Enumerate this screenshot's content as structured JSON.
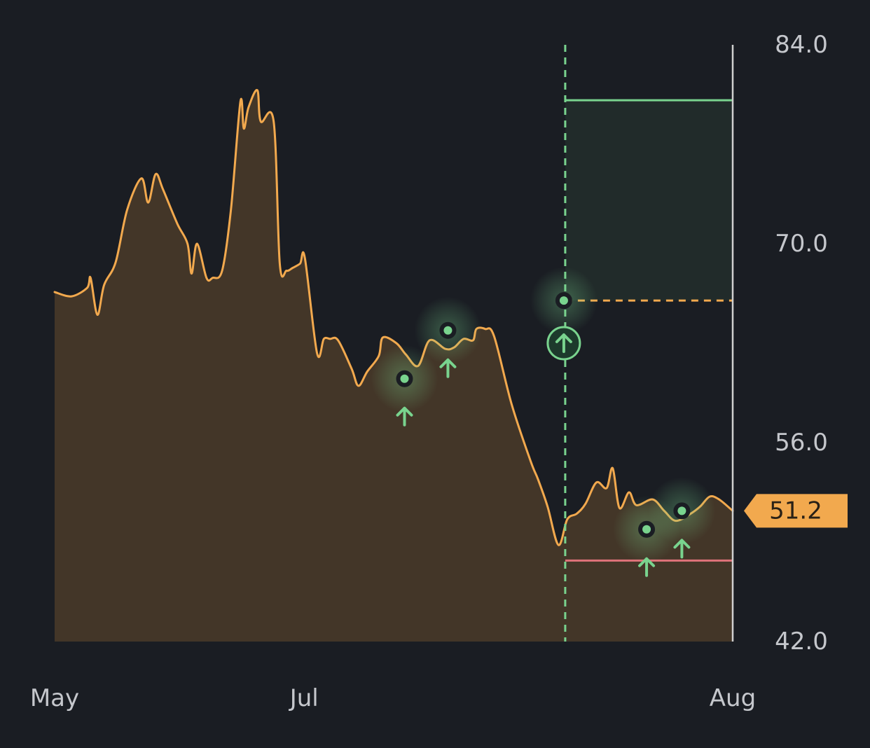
{
  "colors": {
    "background": "#1a1d23",
    "line": "#f2a94e",
    "area_fill": "#433628",
    "signal_green": "#79d38e",
    "stop_red": "#e0737a",
    "target_zone": "#212b2a",
    "axis_line": "#d0d0d0",
    "label_bg": "#f2a94e"
  },
  "icons": {
    "buy_signal": "arrow-up-icon",
    "entry_marker": "arrow-up-circle-icon",
    "price_pointer": "price-flag"
  },
  "chart_data": {
    "type": "area",
    "title": "",
    "xlabel": "",
    "ylabel": "",
    "x_range": [
      0,
      100
    ],
    "ylim": [
      42.0,
      84.0
    ],
    "y_ticks": [
      84.0,
      70.0,
      56.0,
      42.0
    ],
    "y_tick_labels": [
      "84.0",
      "70.0",
      "56.0",
      "42.0"
    ],
    "x_ticks": [
      {
        "x": 0,
        "label": "May"
      },
      {
        "x": 36.8,
        "label": "Jul"
      },
      {
        "x": 100,
        "label": "Aug"
      }
    ],
    "grid": false,
    "series": [
      {
        "x": [
          0,
          2.5,
          4.8,
          5.3,
          6.3,
          7.3,
          9,
          10.7,
          12.8,
          13.8,
          14.9,
          16,
          18.1,
          19.6,
          20.2,
          21,
          22.4,
          23.3,
          24.7,
          26,
          27.4,
          27.9,
          28.6,
          29.9,
          30.4,
          32.3,
          33.2,
          34.2,
          35.1,
          36.2,
          36.9,
          38.7,
          39.7,
          40.6,
          41.8,
          43.8,
          44.8,
          46.1,
          47.8,
          48.4,
          50.4,
          51.8,
          53.6,
          55.3,
          57.6,
          58.9,
          60.3,
          61.7,
          62.2,
          63.5,
          64.8,
          67.4,
          70.2,
          71.3,
          72.7,
          74.3,
          75.6,
          77,
          78.3,
          79.9,
          81.4,
          82.3,
          83.3,
          84.7,
          85.8,
          88.2,
          89.9,
          91.6,
          93.8,
          95.2,
          96.6,
          98,
          100
        ],
        "y": [
          66.6,
          66.3,
          66.9,
          67.6,
          65.0,
          67.1,
          68.7,
          72.4,
          74.6,
          72.9,
          74.9,
          73.8,
          71.4,
          70.0,
          67.9,
          70.0,
          67.6,
          67.6,
          68.1,
          72.4,
          80.0,
          78.1,
          79.6,
          80.8,
          78.6,
          78.6,
          68.6,
          68.1,
          68.3,
          68.6,
          69.0,
          62.3,
          63.3,
          63.3,
          63.2,
          61.2,
          60.0,
          61.0,
          62.1,
          63.4,
          63.0,
          62.2,
          61.4,
          63.2,
          62.6,
          62.7,
          63.3,
          63.2,
          64.0,
          64.0,
          63.5,
          58.7,
          54.7,
          53.4,
          51.5,
          48.8,
          50.6,
          51.0,
          51.7,
          53.2,
          52.8,
          54.2,
          51.4,
          52.5,
          51.6,
          52.0,
          51.2,
          50.5,
          51.0,
          51.5,
          52.2,
          52.0,
          51.2
        ]
      }
    ],
    "signals": [
      {
        "x": 51.6,
        "y": 60.5
      },
      {
        "x": 58.0,
        "y": 63.9
      },
      {
        "x": 87.3,
        "y": 49.9
      },
      {
        "x": 92.5,
        "y": 51.2
      }
    ],
    "entry": {
      "x": 75.3,
      "y": 66.0,
      "marker_y": 63.0
    },
    "target_price": 80.1,
    "entry_price": 66.0,
    "stop_price": 47.7,
    "current_price": 51.2,
    "current_price_label": "51.2"
  }
}
